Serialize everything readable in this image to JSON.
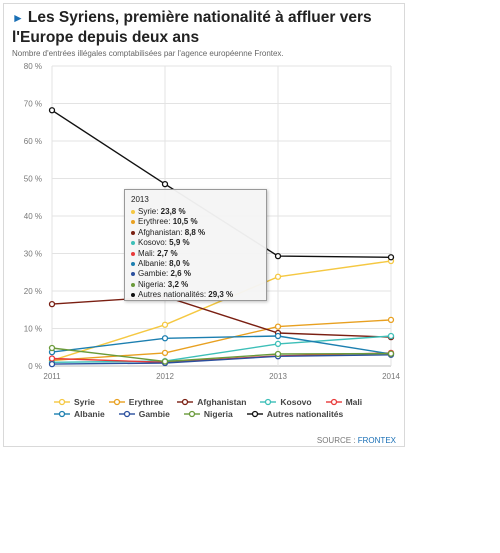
{
  "header": {
    "title": "Les Syriens, première nationalité à affluer vers l'Europe depuis deux ans",
    "subtitle": "Nombre d'entrées illégales comptabilisées par l'agence européenne Frontex."
  },
  "source": {
    "prefix": "SOURCE : ",
    "name": "FRONTEX"
  },
  "tooltip": {
    "year": "2013",
    "rows": [
      {
        "label": "Syrie",
        "value": "23,8 %",
        "color": "#f5c842"
      },
      {
        "label": "Erythree",
        "value": "10,5 %",
        "color": "#e8a020"
      },
      {
        "label": "Afghanistan",
        "value": "8,8 %",
        "color": "#7a1f12"
      },
      {
        "label": "Kosovo",
        "value": "5,9 %",
        "color": "#3dbfb8"
      },
      {
        "label": "Mali",
        "value": "2,7 %",
        "color": "#e83a3a"
      },
      {
        "label": "Albanie",
        "value": "8,0 %",
        "color": "#1c7fb0"
      },
      {
        "label": "Gambie",
        "value": "2,6 %",
        "color": "#2a4f9e"
      },
      {
        "label": "Nigeria",
        "value": "3,2 %",
        "color": "#6a9a3a"
      },
      {
        "label": "Autres nationalités",
        "value": "29,3 %",
        "color": "#111111"
      }
    ]
  },
  "chart_data": {
    "type": "line",
    "x": [
      2011,
      2012,
      2013,
      2014
    ],
    "xticks": [
      "2011",
      "2012",
      "2013",
      "2014"
    ],
    "ylim": [
      0,
      80
    ],
    "yticks": [
      "0 %",
      "10 %",
      "20 %",
      "30 %",
      "40 %",
      "50 %",
      "60 %",
      "70 %",
      "80 %"
    ],
    "grid": true,
    "legend_position": "bottom",
    "series": [
      {
        "name": "Syrie",
        "color": "#f5c842",
        "values": [
          1.5,
          11,
          23.8,
          28
        ]
      },
      {
        "name": "Erythree",
        "color": "#e8a020",
        "values": [
          1.5,
          3.5,
          10.5,
          12.3
        ]
      },
      {
        "name": "Afghanistan",
        "color": "#7a1f12",
        "values": [
          16.5,
          18.5,
          8.8,
          7.7
        ]
      },
      {
        "name": "Kosovo",
        "color": "#3dbfb8",
        "values": [
          1,
          1.3,
          5.9,
          8
        ]
      },
      {
        "name": "Mali",
        "color": "#e83a3a",
        "values": [
          2,
          1,
          2.7,
          3.5
        ]
      },
      {
        "name": "Albanie",
        "color": "#1c7fb0",
        "values": [
          3.7,
          7.4,
          8.0,
          3.2
        ]
      },
      {
        "name": "Gambie",
        "color": "#2a4f9e",
        "values": [
          0.5,
          0.8,
          2.6,
          3
        ]
      },
      {
        "name": "Nigeria",
        "color": "#6a9a3a",
        "values": [
          4.8,
          1.2,
          3.2,
          3.3
        ]
      },
      {
        "name": "Autres nationalités",
        "color": "#111111",
        "values": [
          68.2,
          48.5,
          29.3,
          29
        ]
      }
    ]
  }
}
